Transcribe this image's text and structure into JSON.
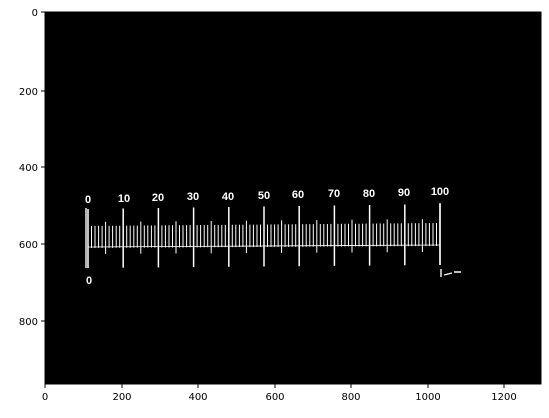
{
  "axes": {
    "x_ticks": [
      "0",
      "200",
      "400",
      "600",
      "800",
      "1000",
      "1200"
    ],
    "y_ticks": [
      "0",
      "200",
      "400",
      "600",
      "800"
    ],
    "x_range": [
      0,
      1296
    ],
    "y_range": [
      972,
      0
    ],
    "background": "#000000",
    "foreground": "#ffffff"
  },
  "image": {
    "ruler_labels": [
      "0",
      "10",
      "20",
      "30",
      "40",
      "50",
      "60",
      "70",
      "80",
      "90",
      "100"
    ],
    "bottom_left_label": "0"
  }
}
